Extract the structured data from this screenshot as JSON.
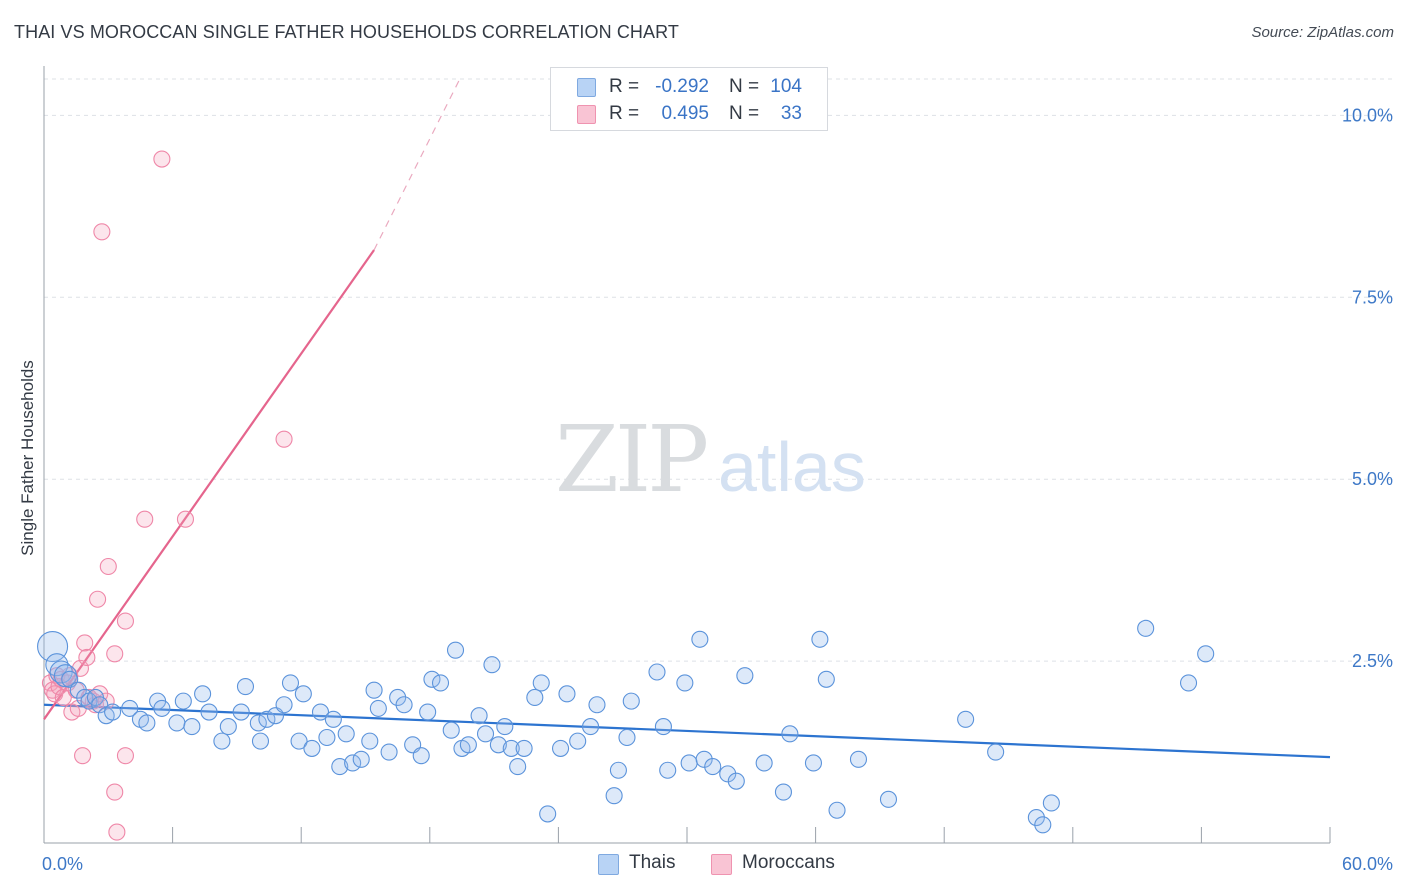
{
  "title": "THAI VS MOROCCAN SINGLE FATHER HOUSEHOLDS CORRELATION CHART",
  "source": "Source: ZipAtlas.com",
  "watermark": {
    "zip": "ZIP",
    "atlas": "atlas"
  },
  "legend_top": [
    {
      "r_label": "R =",
      "r_value": "-0.292",
      "n_label": "N =",
      "n_value": "104",
      "color": "#b8d3f5",
      "border": "#7fa9e0"
    },
    {
      "r_label": "R =",
      "r_value": "0.495",
      "n_label": "N =",
      "n_value": "33",
      "color": "#f9c4d4",
      "border": "#ef93b0"
    }
  ],
  "legend_bottom": [
    {
      "label": "Thais",
      "color": "#b8d3f5",
      "border": "#7fa9e0"
    },
    {
      "label": "Moroccans",
      "color": "#f9c4d4",
      "border": "#ef93b0"
    }
  ],
  "colors": {
    "thai": "#5b93db",
    "thai_line": "#2d74d0",
    "moroccan": "#ef87a8",
    "moroccan_line": "#e5658d",
    "tick_text": "#3d78c7",
    "grid": "#dde1e6"
  },
  "chart_data": {
    "type": "scatter",
    "title": "THAI VS MOROCCAN SINGLE FATHER HOUSEHOLDS CORRELATION CHART",
    "xlabel": "",
    "ylabel": "Single Father Households",
    "xlim": [
      0,
      60
    ],
    "ylim": [
      0,
      10.5
    ],
    "x_tick_labels": [
      {
        "value": 0,
        "label": "0.0%"
      },
      {
        "value": 60,
        "label": "60.0%"
      }
    ],
    "y_ticks": [
      {
        "value": 2.5,
        "label": "2.5%"
      },
      {
        "value": 5.0,
        "label": "5.0%"
      },
      {
        "value": 7.5,
        "label": "7.5%"
      },
      {
        "value": 10.0,
        "label": "10.0%"
      }
    ],
    "series": [
      {
        "name": "Thais",
        "r": -0.292,
        "n": 104,
        "trend": {
          "x0": 0,
          "y0": 1.9,
          "x1": 60,
          "y1": 1.18
        },
        "points": [
          [
            0.4,
            2.7
          ],
          [
            0.6,
            2.45
          ],
          [
            0.8,
            2.35
          ],
          [
            1.0,
            2.3
          ],
          [
            1.2,
            2.25
          ],
          [
            1.6,
            2.1
          ],
          [
            1.9,
            2.0
          ],
          [
            2.1,
            1.95
          ],
          [
            2.4,
            2.0
          ],
          [
            2.6,
            1.9
          ],
          [
            2.9,
            1.75
          ],
          [
            3.2,
            1.8
          ],
          [
            4.0,
            1.85
          ],
          [
            4.5,
            1.7
          ],
          [
            5.3,
            1.95
          ],
          [
            5.5,
            1.85
          ],
          [
            4.8,
            1.65
          ],
          [
            6.2,
            1.65
          ],
          [
            6.5,
            1.95
          ],
          [
            6.9,
            1.6
          ],
          [
            7.4,
            2.05
          ],
          [
            7.7,
            1.8
          ],
          [
            8.3,
            1.4
          ],
          [
            8.6,
            1.6
          ],
          [
            9.2,
            1.8
          ],
          [
            9.4,
            2.15
          ],
          [
            10.0,
            1.65
          ],
          [
            10.1,
            1.4
          ],
          [
            10.4,
            1.7
          ],
          [
            10.8,
            1.75
          ],
          [
            11.2,
            1.9
          ],
          [
            11.5,
            2.2
          ],
          [
            11.9,
            1.4
          ],
          [
            12.1,
            2.05
          ],
          [
            12.5,
            1.3
          ],
          [
            12.9,
            1.8
          ],
          [
            13.2,
            1.45
          ],
          [
            13.5,
            1.7
          ],
          [
            13.8,
            1.05
          ],
          [
            14.1,
            1.5
          ],
          [
            14.4,
            1.1
          ],
          [
            14.8,
            1.15
          ],
          [
            15.2,
            1.4
          ],
          [
            15.4,
            2.1
          ],
          [
            15.6,
            1.85
          ],
          [
            16.1,
            1.25
          ],
          [
            16.5,
            2.0
          ],
          [
            16.8,
            1.9
          ],
          [
            17.2,
            1.35
          ],
          [
            17.6,
            1.2
          ],
          [
            17.9,
            1.8
          ],
          [
            18.1,
            2.25
          ],
          [
            18.5,
            2.2
          ],
          [
            19.0,
            1.55
          ],
          [
            19.2,
            2.65
          ],
          [
            19.5,
            1.3
          ],
          [
            19.8,
            1.35
          ],
          [
            20.3,
            1.75
          ],
          [
            20.6,
            1.5
          ],
          [
            20.9,
            2.45
          ],
          [
            21.2,
            1.35
          ],
          [
            21.5,
            1.6
          ],
          [
            21.8,
            1.3
          ],
          [
            22.1,
            1.05
          ],
          [
            22.4,
            1.3
          ],
          [
            22.9,
            2.0
          ],
          [
            23.2,
            2.2
          ],
          [
            23.5,
            0.4
          ],
          [
            24.1,
            1.3
          ],
          [
            24.4,
            2.05
          ],
          [
            24.9,
            1.4
          ],
          [
            25.5,
            1.6
          ],
          [
            25.8,
            1.9
          ],
          [
            26.6,
            0.65
          ],
          [
            26.8,
            1.0
          ],
          [
            27.2,
            1.45
          ],
          [
            27.4,
            1.95
          ],
          [
            28.6,
            2.35
          ],
          [
            28.9,
            1.6
          ],
          [
            29.1,
            1.0
          ],
          [
            29.9,
            2.2
          ],
          [
            30.1,
            1.1
          ],
          [
            30.6,
            2.8
          ],
          [
            30.8,
            1.15
          ],
          [
            31.2,
            1.05
          ],
          [
            31.9,
            0.95
          ],
          [
            32.3,
            0.85
          ],
          [
            32.7,
            2.3
          ],
          [
            33.6,
            1.1
          ],
          [
            34.5,
            0.7
          ],
          [
            34.8,
            1.5
          ],
          [
            35.9,
            1.1
          ],
          [
            36.2,
            2.8
          ],
          [
            36.5,
            2.25
          ],
          [
            37.0,
            0.45
          ],
          [
            38.0,
            1.15
          ],
          [
            39.4,
            0.6
          ],
          [
            43.0,
            1.7
          ],
          [
            44.4,
            1.25
          ],
          [
            46.3,
            0.35
          ],
          [
            46.6,
            0.25
          ],
          [
            47.0,
            0.55
          ],
          [
            51.4,
            2.95
          ],
          [
            53.4,
            2.2
          ],
          [
            54.2,
            2.6
          ]
        ],
        "sizes_note": "first point is a larger bubble"
      },
      {
        "name": "Moroccans",
        "r": 0.495,
        "n": 33,
        "trend": {
          "x0": 0,
          "y0": 1.7,
          "x1": 15.4,
          "y1": 8.15,
          "dashed_to_x": 19.4,
          "dashed_to_y": 10.5
        },
        "points": [
          [
            0.3,
            2.2
          ],
          [
            0.4,
            2.1
          ],
          [
            0.5,
            2.05
          ],
          [
            0.6,
            2.3
          ],
          [
            0.7,
            2.15
          ],
          [
            0.8,
            2.25
          ],
          [
            0.9,
            2.0
          ],
          [
            1.1,
            2.2
          ],
          [
            1.2,
            2.3
          ],
          [
            1.3,
            1.8
          ],
          [
            1.5,
            2.1
          ],
          [
            1.6,
            1.85
          ],
          [
            1.7,
            2.4
          ],
          [
            1.8,
            1.2
          ],
          [
            1.9,
            2.75
          ],
          [
            2.0,
            2.55
          ],
          [
            2.1,
            2.0
          ],
          [
            2.3,
            1.95
          ],
          [
            2.4,
            1.9
          ],
          [
            2.5,
            3.35
          ],
          [
            2.6,
            2.05
          ],
          [
            2.7,
            8.4
          ],
          [
            2.9,
            1.95
          ],
          [
            3.0,
            3.8
          ],
          [
            3.3,
            2.6
          ],
          [
            3.3,
            0.7
          ],
          [
            3.4,
            0.15
          ],
          [
            3.8,
            1.2
          ],
          [
            3.8,
            3.05
          ],
          [
            4.7,
            4.45
          ],
          [
            5.5,
            9.4
          ],
          [
            6.6,
            4.45
          ],
          [
            11.2,
            5.55
          ]
        ]
      }
    ]
  }
}
